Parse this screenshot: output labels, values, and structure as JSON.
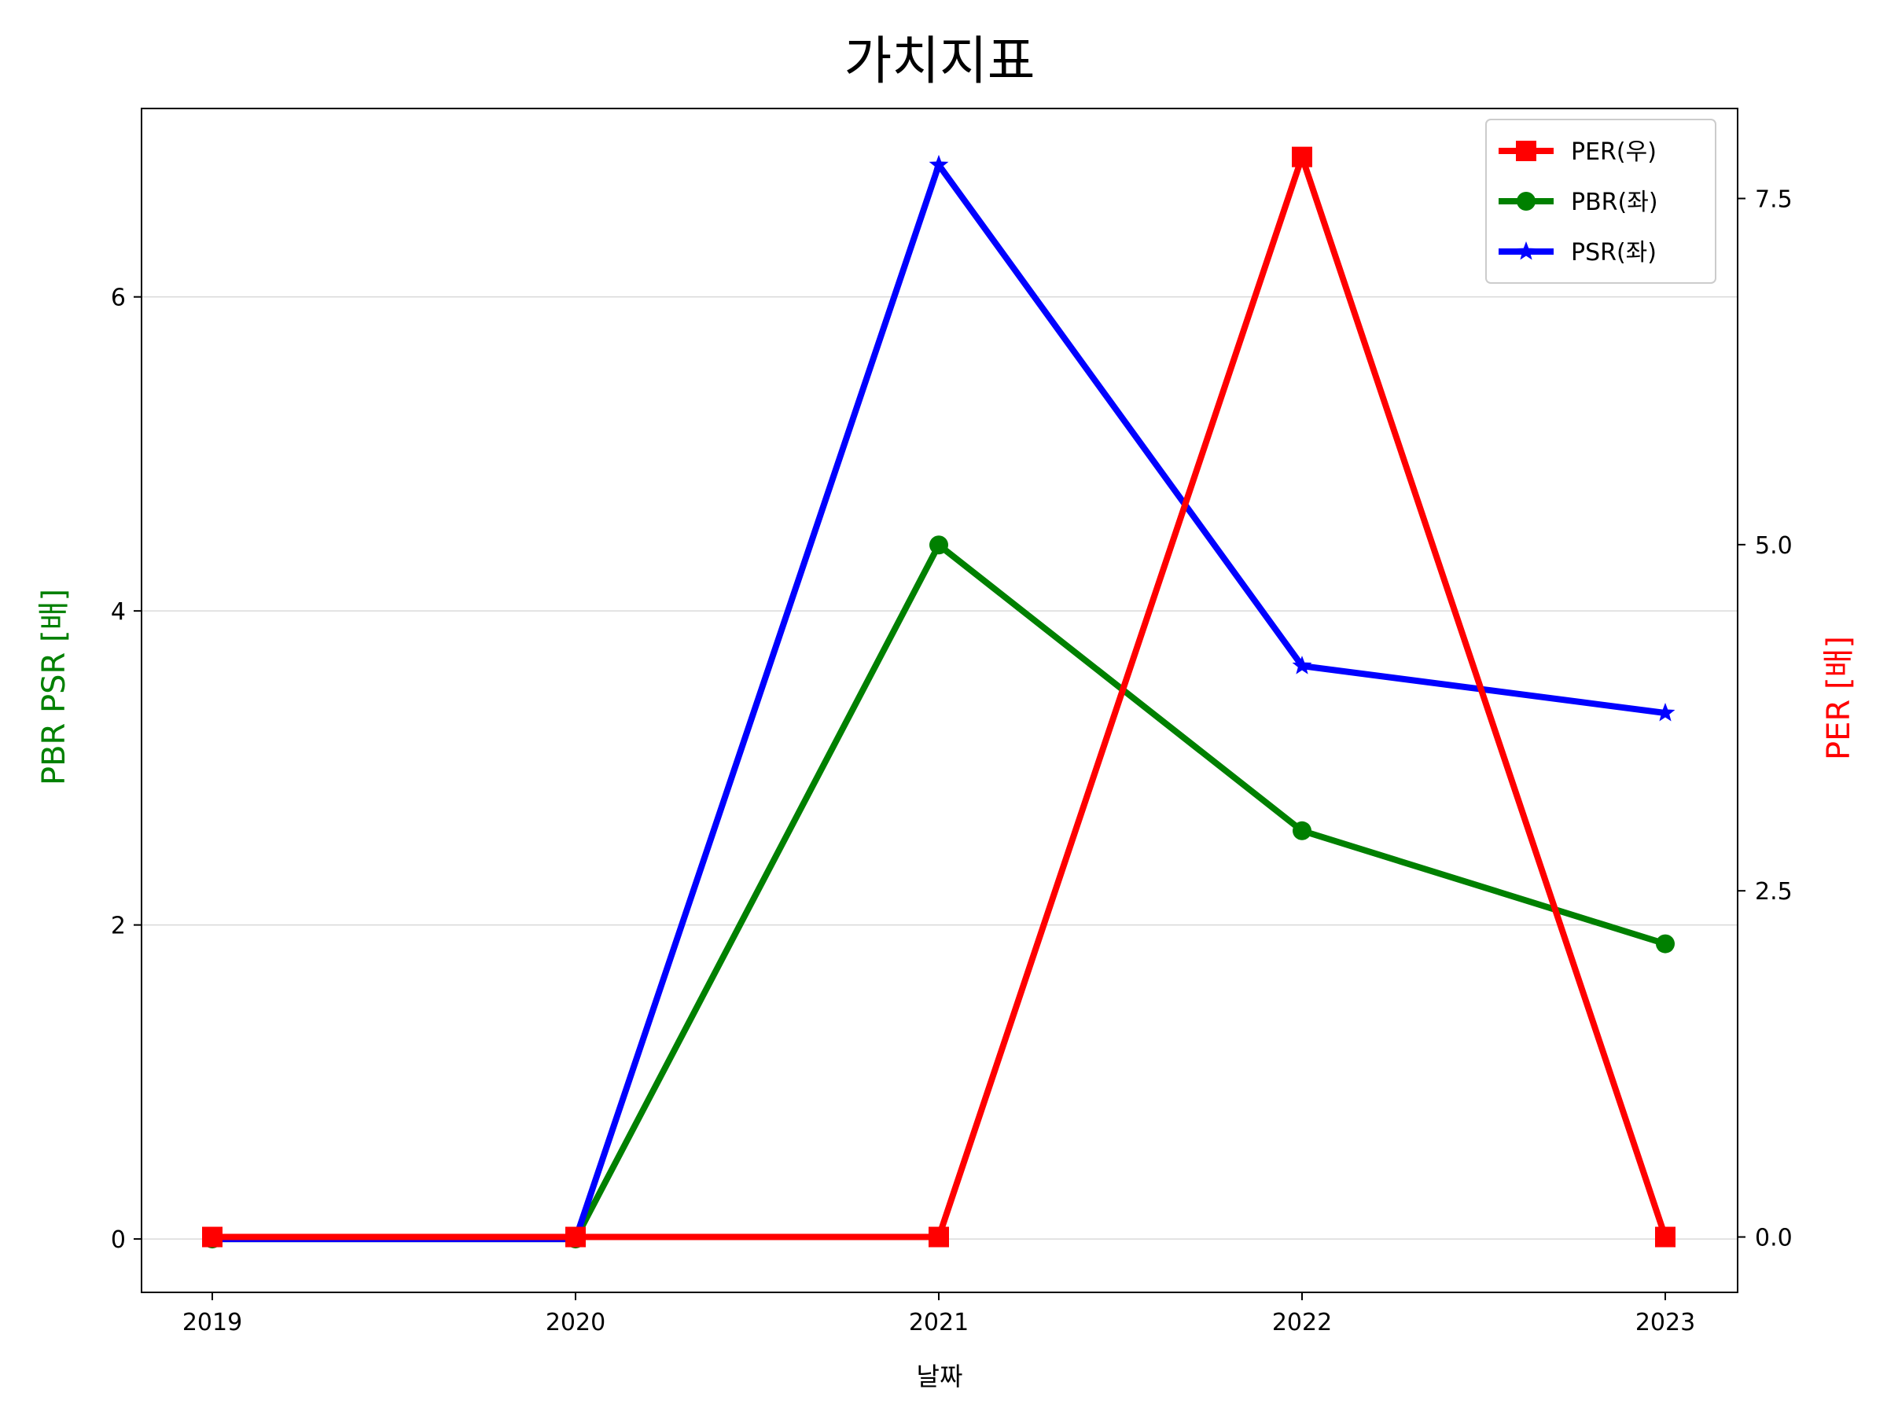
{
  "chart_data": {
    "type": "line",
    "title": "가치지표",
    "xlabel": "날짜",
    "ylabel_left": "PBR PSR [배]",
    "ylabel_right": "PER [배]",
    "categories": [
      "2019",
      "2020",
      "2021",
      "2022",
      "2023"
    ],
    "left_axis": {
      "ylim": [
        -0.34,
        7.2
      ],
      "ticks": [
        0,
        2,
        4,
        6
      ],
      "tick_labels": [
        "0",
        "2",
        "4",
        "6"
      ],
      "grid": true
    },
    "right_axis": {
      "ylim": [
        -0.4,
        8.15
      ],
      "ticks": [
        0.0,
        2.5,
        5.0,
        7.5
      ],
      "tick_labels": [
        "0.0",
        "2.5",
        "5.0",
        "7.5"
      ]
    },
    "series": [
      {
        "name": "PER(우)",
        "axis": "right",
        "color": "#ff0000",
        "marker": "square",
        "values": [
          0.0,
          0.0,
          0.0,
          7.8,
          0.0
        ]
      },
      {
        "name": "PBR(좌)",
        "axis": "left",
        "color": "#008000",
        "marker": "circle",
        "values": [
          0.0,
          0.0,
          4.42,
          2.6,
          1.88
        ]
      },
      {
        "name": "PSR(좌)",
        "axis": "left",
        "color": "#0000ff",
        "marker": "star",
        "values": [
          0.0,
          0.0,
          6.84,
          3.65,
          3.35
        ]
      }
    ],
    "legend": {
      "placement": "top-right"
    },
    "colors": {
      "ylabel_left": "#008000",
      "ylabel_right": "#ff0000"
    }
  }
}
